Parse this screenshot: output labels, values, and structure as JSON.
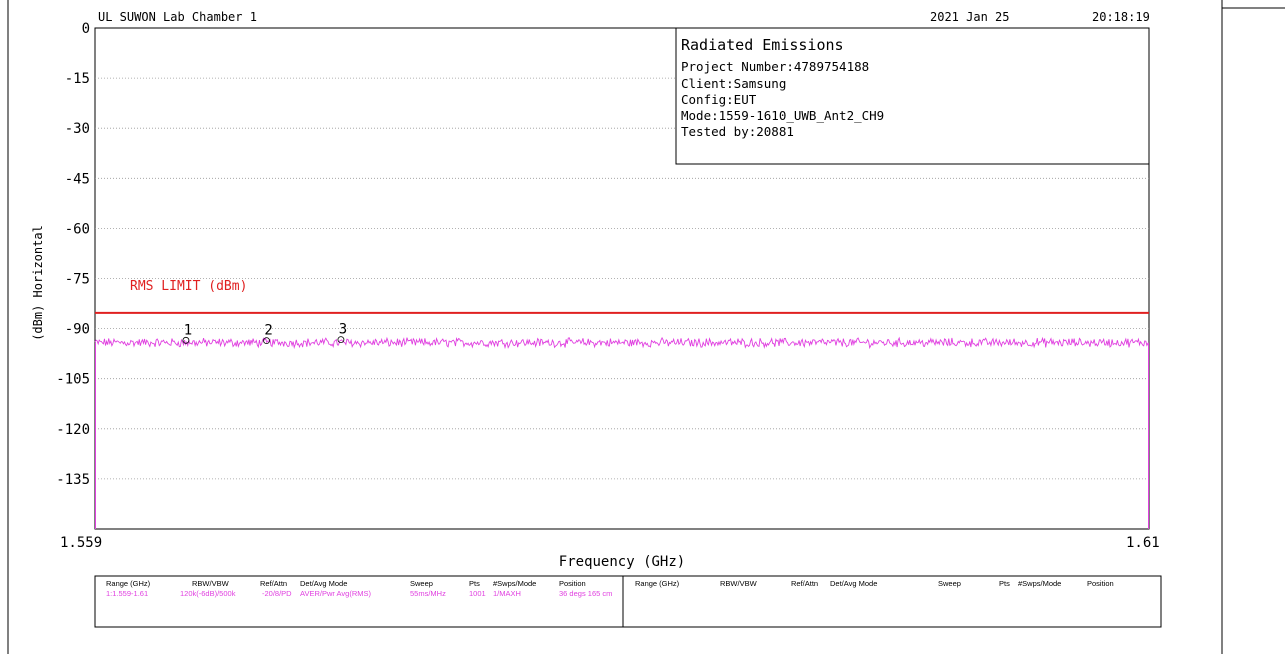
{
  "header": {
    "site": "UL SUWON Lab Chamber 1",
    "date": "2021 Jan 25",
    "time": "20:18:19"
  },
  "info_box": {
    "title": "Radiated Emissions",
    "lines": [
      "Project Number:4789754188",
      "Client:Samsung",
      "Config:EUT",
      "Mode:1559-1610_UWB_Ant2_CH9",
      "Tested by:20881"
    ]
  },
  "chart_data": {
    "type": "line",
    "xlabel": "Frequency (GHz)",
    "ylabel": "(dBm) Horizontal",
    "xlim": [
      1.559,
      1.61
    ],
    "ylim": [
      -150,
      0
    ],
    "x_tick_labels": [
      "1.559",
      "1.61"
    ],
    "y_ticks": [
      0,
      -15,
      -30,
      -45,
      -60,
      -75,
      -90,
      -105,
      -120,
      -135
    ],
    "y_tick_labels": [
      "0",
      "-15",
      "-30",
      "-45",
      "-60",
      "-75",
      "-90",
      "-105",
      "-120",
      "-135"
    ],
    "grid": true,
    "limit_line": {
      "label": "RMS LIMIT (dBm)",
      "value": -85.3,
      "color": "#e02020"
    },
    "trace": {
      "color": "#e040e0",
      "level": -94.2,
      "noise": 1.1
    },
    "markers": [
      {
        "label": "1",
        "x": 1.5634,
        "y": -93.5
      },
      {
        "label": "2",
        "x": 1.5673,
        "y": -93.6
      },
      {
        "label": "3",
        "x": 1.5709,
        "y": -93.3
      }
    ]
  },
  "settings_table": {
    "headers": [
      "Range (GHz)",
      "RBW/VBW",
      "Ref/Attn",
      "Det/Avg Mode",
      "Sweep",
      "Pts",
      "#Swps/Mode",
      "Position"
    ],
    "row": [
      "1:1.559-1.61",
      "120k(-6dB)/500k",
      "-20/8/PD",
      "AVER/Pwr Avg(RMS)",
      "55ms/MHz",
      "1001",
      "1/MAXH",
      "36 degs 165 cm"
    ],
    "headers_right": [
      "Range (GHz)",
      "RBW/VBW",
      "Ref/Attn",
      "Det/Avg Mode",
      "Sweep",
      "Pts",
      "#Swps/Mode",
      "Position"
    ]
  }
}
